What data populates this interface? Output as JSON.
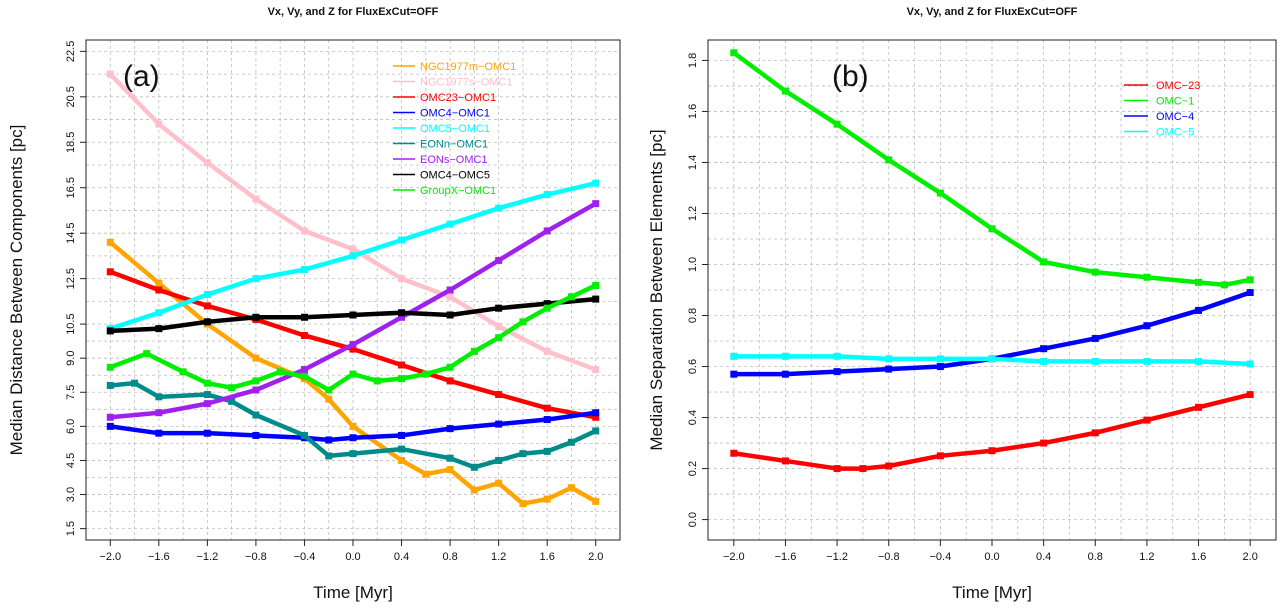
{
  "chart_data": [
    {
      "type": "line",
      "title": "Vx, Vy, and Z for FluxExCut=OFF",
      "panel_tag": "(a)",
      "xlabel": "Time [Myr]",
      "ylabel": "Median Distance Between Components [pc]",
      "xlim": [
        -2.2,
        2.2
      ],
      "ylim": [
        1.0,
        23.0
      ],
      "x_ticks": [
        "−2.0",
        "−1.6",
        "−1.2",
        "−0.8",
        "−0.4",
        "0.0",
        "0.4",
        "0.8",
        "1.2",
        "1.6",
        "2.0"
      ],
      "x_tick_values": [
        -2.0,
        -1.6,
        -1.2,
        -0.8,
        -0.4,
        0.0,
        0.4,
        0.8,
        1.2,
        1.6,
        2.0
      ],
      "y_ticks": [
        "1.5",
        "3.0",
        "4.5",
        "6.0",
        "7.5",
        "9.0",
        "10.5",
        "12.5",
        "14.5",
        "16.5",
        "18.5",
        "20.5",
        "22.5"
      ],
      "y_tick_values": [
        1.5,
        3.0,
        4.5,
        6.0,
        7.5,
        9.0,
        10.5,
        12.5,
        14.5,
        16.5,
        18.5,
        20.5,
        22.5
      ],
      "grid": true,
      "legend": "top-right",
      "series": [
        {
          "name": "NGC1977m−OMC1",
          "color": "#ffa500",
          "x": [
            -2.0,
            -1.6,
            -1.2,
            -0.8,
            -0.4,
            -0.2,
            0.0,
            0.4,
            0.6,
            0.8,
            1.0,
            1.2,
            1.4,
            1.6,
            1.8,
            2.0
          ],
          "y": [
            14.1,
            12.3,
            10.5,
            9.0,
            8.1,
            7.2,
            6.0,
            4.5,
            3.9,
            4.1,
            3.2,
            3.5,
            2.6,
            2.8,
            3.3,
            2.7
          ]
        },
        {
          "name": "NGC1977s−OMC1",
          "color": "#ffc0cb",
          "x": [
            -2.0,
            -1.6,
            -1.2,
            -0.8,
            -0.4,
            0.0,
            0.4,
            0.8,
            1.2,
            1.6,
            2.0
          ],
          "y": [
            21.5,
            19.3,
            17.6,
            16.0,
            14.6,
            13.8,
            12.5,
            11.7,
            10.4,
            9.3,
            8.5
          ]
        },
        {
          "name": "OMC23−OMC1",
          "color": "#ff0000",
          "x": [
            -2.0,
            -1.6,
            -1.2,
            -0.8,
            -0.4,
            0.0,
            0.4,
            0.8,
            1.2,
            1.6,
            2.0
          ],
          "y": [
            12.8,
            12.0,
            11.3,
            10.7,
            10.0,
            9.4,
            8.7,
            8.0,
            7.4,
            6.8,
            6.4
          ]
        },
        {
          "name": "OMC4−OMC1",
          "color": "#0000ff",
          "x": [
            -2.0,
            -1.6,
            -1.2,
            -0.8,
            -0.4,
            -0.2,
            0.0,
            0.4,
            0.8,
            1.2,
            1.6,
            2.0
          ],
          "y": [
            6.0,
            5.7,
            5.7,
            5.6,
            5.5,
            5.4,
            5.5,
            5.6,
            5.9,
            6.1,
            6.3,
            6.6
          ]
        },
        {
          "name": "OMC5−OMC1",
          "color": "#00ffff",
          "x": [
            -2.0,
            -1.6,
            -1.2,
            -0.8,
            -0.4,
            0.0,
            0.4,
            0.8,
            1.2,
            1.6,
            2.0
          ],
          "y": [
            10.3,
            11.0,
            11.8,
            12.5,
            12.9,
            13.5,
            14.2,
            14.9,
            15.6,
            16.2,
            16.7
          ]
        },
        {
          "name": "EONn−OMC1",
          "color": "#008b8b",
          "x": [
            -2.0,
            -1.8,
            -1.6,
            -1.2,
            -1.0,
            -0.8,
            -0.4,
            -0.2,
            0.0,
            0.4,
            0.8,
            1.0,
            1.2,
            1.4,
            1.6,
            1.8,
            2.0
          ],
          "y": [
            7.8,
            7.9,
            7.3,
            7.4,
            7.1,
            6.5,
            5.6,
            4.7,
            4.8,
            5.0,
            4.6,
            4.2,
            4.5,
            4.8,
            4.9,
            5.3,
            5.8
          ]
        },
        {
          "name": "EONs−OMC1",
          "color": "#a020f0",
          "x": [
            -2.0,
            -1.6,
            -1.2,
            -0.8,
            -0.4,
            0.0,
            0.4,
            0.8,
            1.2,
            1.6,
            2.0
          ],
          "y": [
            6.4,
            6.6,
            7.0,
            7.6,
            8.5,
            9.6,
            10.8,
            12.0,
            13.3,
            14.6,
            15.8
          ]
        },
        {
          "name": "OMC4−OMC5",
          "color": "#000000",
          "x": [
            -2.0,
            -1.6,
            -1.2,
            -0.8,
            -0.4,
            0.0,
            0.4,
            0.8,
            1.2,
            1.6,
            2.0
          ],
          "y": [
            10.2,
            10.3,
            10.6,
            10.8,
            10.8,
            10.9,
            11.0,
            10.9,
            11.2,
            11.4,
            11.6
          ]
        },
        {
          "name": "GroupX−OMC1",
          "color": "#00ee00",
          "x": [
            -2.0,
            -1.7,
            -1.4,
            -1.2,
            -1.0,
            -0.8,
            -0.6,
            -0.4,
            -0.2,
            0.0,
            0.2,
            0.4,
            0.6,
            0.8,
            1.0,
            1.2,
            1.4,
            1.6,
            1.8,
            2.0
          ],
          "y": [
            8.6,
            9.2,
            8.4,
            7.9,
            7.7,
            8.0,
            8.4,
            8.2,
            7.6,
            8.3,
            8.0,
            8.1,
            8.3,
            8.6,
            9.3,
            9.9,
            10.6,
            11.2,
            11.7,
            12.2
          ]
        }
      ]
    },
    {
      "type": "line",
      "title": "Vx, Vy, and Z for FluxExCut=OFF",
      "panel_tag": "(b)",
      "xlabel": "Time [Myr]",
      "ylabel": "Median Separation Between Elements [pc]",
      "xlim": [
        -2.2,
        2.2
      ],
      "ylim": [
        -0.08,
        1.88
      ],
      "x_ticks": [
        "−2.0",
        "−1.6",
        "−1.2",
        "−0.8",
        "−0.4",
        "0.0",
        "0.4",
        "0.8",
        "1.2",
        "1.6",
        "2.0"
      ],
      "x_tick_values": [
        -2.0,
        -1.6,
        -1.2,
        -0.8,
        -0.4,
        0.0,
        0.4,
        0.8,
        1.2,
        1.6,
        2.0
      ],
      "y_ticks": [
        "0.0",
        "0.2",
        "0.4",
        "0.6",
        "0.8",
        "1.0",
        "1.2",
        "1.4",
        "1.6",
        "1.8"
      ],
      "y_tick_values": [
        0.0,
        0.2,
        0.4,
        0.6,
        0.8,
        1.0,
        1.2,
        1.4,
        1.6,
        1.8
      ],
      "grid": true,
      "legend": "top-right",
      "series": [
        {
          "name": "OMC−23",
          "color": "#ff0000",
          "x": [
            -2.0,
            -1.6,
            -1.2,
            -1.0,
            -0.8,
            -0.4,
            0.0,
            0.4,
            0.8,
            1.2,
            1.6,
            2.0
          ],
          "y": [
            0.26,
            0.23,
            0.2,
            0.2,
            0.21,
            0.25,
            0.27,
            0.3,
            0.34,
            0.39,
            0.44,
            0.49
          ]
        },
        {
          "name": "OMC−1",
          "color": "#00ee00",
          "x": [
            -2.0,
            -1.6,
            -1.2,
            -0.8,
            -0.4,
            0.0,
            0.4,
            0.8,
            1.2,
            1.6,
            1.8,
            2.0
          ],
          "y": [
            1.83,
            1.68,
            1.55,
            1.41,
            1.28,
            1.14,
            1.01,
            0.97,
            0.95,
            0.93,
            0.92,
            0.94
          ]
        },
        {
          "name": "OMC−4",
          "color": "#0000ff",
          "x": [
            -2.0,
            -1.6,
            -1.2,
            -0.8,
            -0.4,
            0.0,
            0.4,
            0.8,
            1.2,
            1.6,
            2.0
          ],
          "y": [
            0.57,
            0.57,
            0.58,
            0.59,
            0.6,
            0.63,
            0.67,
            0.71,
            0.76,
            0.82,
            0.89
          ]
        },
        {
          "name": "OMC−5",
          "color": "#00ffff",
          "x": [
            -2.0,
            -1.6,
            -1.2,
            -0.8,
            -0.4,
            0.0,
            0.4,
            0.8,
            1.2,
            1.6,
            2.0
          ],
          "y": [
            0.64,
            0.64,
            0.64,
            0.63,
            0.63,
            0.63,
            0.62,
            0.62,
            0.62,
            0.62,
            0.61
          ]
        }
      ]
    }
  ]
}
